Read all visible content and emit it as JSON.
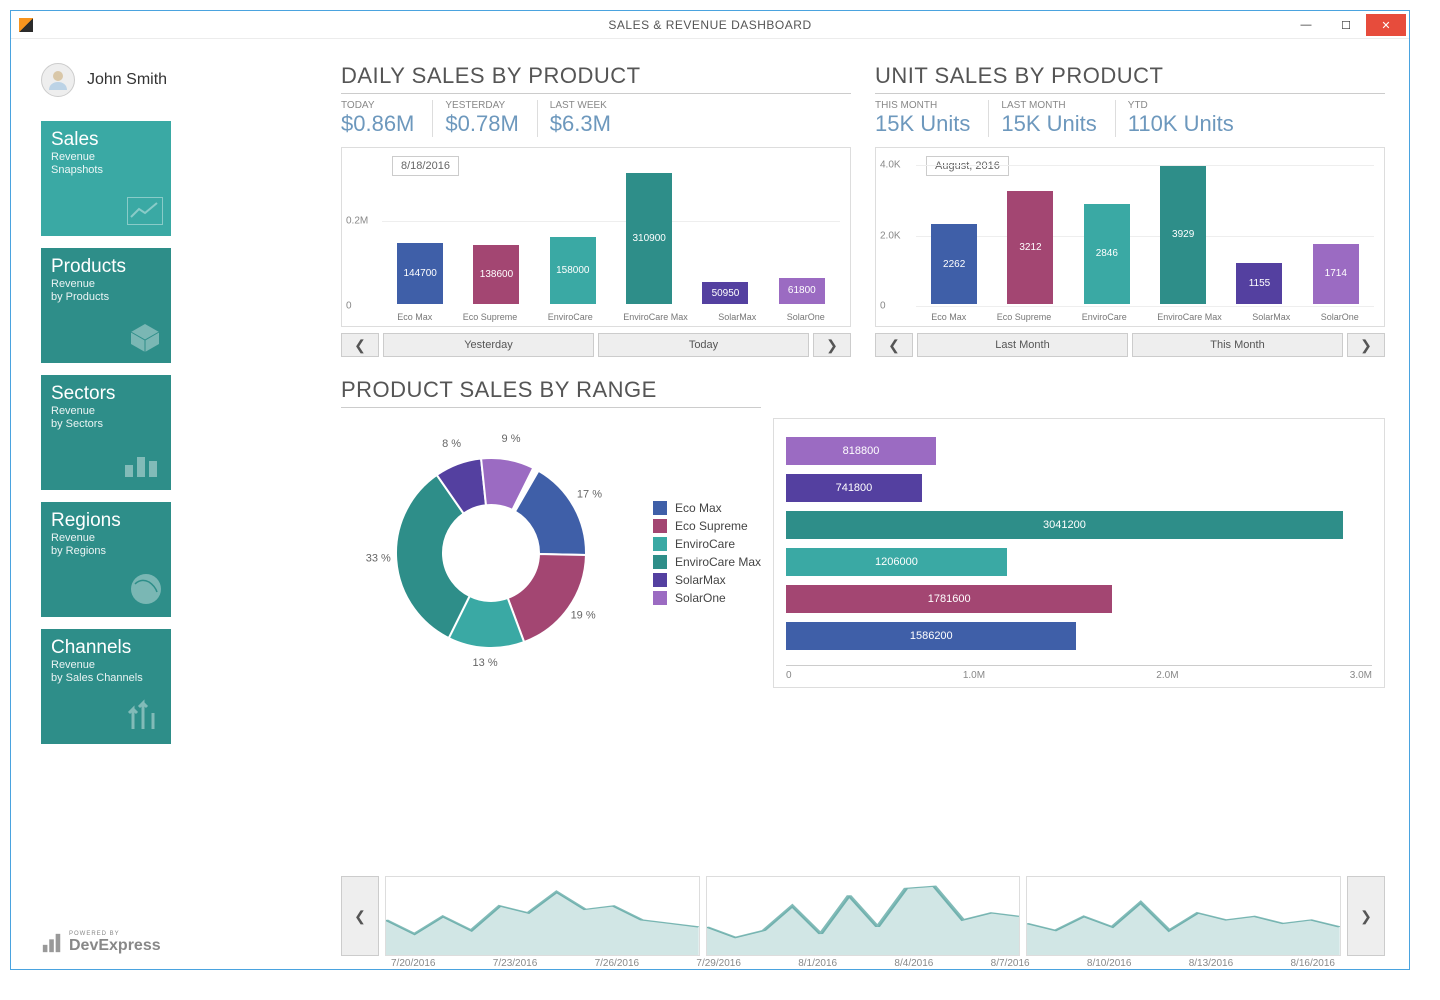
{
  "window": {
    "title": "SALES & REVENUE DASHBOARD"
  },
  "user": {
    "name": "John Smith"
  },
  "tiles": [
    {
      "title": "Sales",
      "sub1": "Revenue",
      "sub2": "Snapshots",
      "dark": false
    },
    {
      "title": "Products",
      "sub1": "Revenue",
      "sub2": "by Products",
      "dark": true
    },
    {
      "title": "Sectors",
      "sub1": "Revenue",
      "sub2": "by Sectors",
      "dark": true
    },
    {
      "title": "Regions",
      "sub1": "Revenue",
      "sub2": "by Regions",
      "dark": true
    },
    {
      "title": "Channels",
      "sub1": "Revenue",
      "sub2": "by Sales Channels",
      "dark": true
    }
  ],
  "colors": {
    "ecoMax": "#3f5fa8",
    "ecoSupreme": "#a34672",
    "enviroCare": "#3aa9a4",
    "enviroCareMax": "#2e8e89",
    "solarMax": "#5440a0",
    "solarOne": "#9b6bc2",
    "tile": "#3aa9a4",
    "tileDark": "#2e8e89"
  },
  "daily": {
    "title": "DAILY SALES BY PRODUCT",
    "metrics": [
      {
        "label": "TODAY",
        "value": "$0.86M"
      },
      {
        "label": "YESTERDAY",
        "value": "$0.78M"
      },
      {
        "label": "LAST WEEK",
        "value": "$6.3M"
      }
    ],
    "tag": "8/18/2016",
    "ymax": 350000,
    "ytick_label": "0.2M",
    "ytick_at": 200000,
    "categories": [
      "Eco Max",
      "Eco Supreme",
      "EnviroCare",
      "EnviroCare Max",
      "SolarMax",
      "SolarOne"
    ],
    "values": [
      144700,
      138600,
      158000,
      310900,
      50950,
      61800
    ],
    "bar_colors": [
      "#3f5fa8",
      "#a34672",
      "#3aa9a4",
      "#2e8e89",
      "#5440a0",
      "#9b6bc2"
    ],
    "nav": {
      "prev": "Yesterday",
      "next": "Today"
    }
  },
  "unit": {
    "title": "UNIT SALES BY PRODUCT",
    "metrics": [
      {
        "label": "THIS MONTH",
        "value": "15K Units"
      },
      {
        "label": "LAST MONTH",
        "value": "15K Units"
      },
      {
        "label": "YTD",
        "value": "110K Units"
      }
    ],
    "tag": "August, 2016",
    "ymax": 4200,
    "ytick_labels": [
      "4.0K",
      "2.0K",
      "0"
    ],
    "ytick_at": [
      4000,
      2000,
      0
    ],
    "categories": [
      "Eco Max",
      "Eco Supreme",
      "EnviroCare",
      "EnviroCare Max",
      "SolarMax",
      "SolarOne"
    ],
    "values": [
      2262,
      3212,
      2846,
      3929,
      1155,
      1714
    ],
    "bar_colors": [
      "#3f5fa8",
      "#a34672",
      "#3aa9a4",
      "#2e8e89",
      "#5440a0",
      "#9b6bc2"
    ],
    "nav": {
      "prev": "Last Month",
      "next": "This Month"
    }
  },
  "range": {
    "title": "PRODUCT SALES BY RANGE",
    "donut": {
      "labelsPct": [
        "17 %",
        "19 %",
        "13 %",
        "33 %",
        "8 %",
        "9 %"
      ],
      "slices": [
        {
          "name": "Eco Max",
          "pct": 17,
          "color": "#3f5fa8"
        },
        {
          "name": "Eco Supreme",
          "pct": 19,
          "color": "#a34672"
        },
        {
          "name": "EnviroCare",
          "pct": 13,
          "color": "#3aa9a4"
        },
        {
          "name": "EnviroCare Max",
          "pct": 33,
          "color": "#2e8e89"
        },
        {
          "name": "SolarMax",
          "pct": 8,
          "color": "#5440a0"
        },
        {
          "name": "SolarOne",
          "pct": 9,
          "color": "#9b6bc2"
        }
      ]
    },
    "legend": [
      "Eco Max",
      "Eco Supreme",
      "EnviroCare",
      "EnviroCare Max",
      "SolarMax",
      "SolarOne"
    ],
    "hbars": {
      "max": 3200000,
      "xticks": [
        "0",
        "1.0M",
        "2.0M",
        "3.0M"
      ],
      "rows": [
        {
          "value": 818800,
          "color": "#9b6bc2"
        },
        {
          "value": 741800,
          "color": "#5440a0"
        },
        {
          "value": 3041200,
          "color": "#2e8e89"
        },
        {
          "value": 1206000,
          "color": "#3aa9a4"
        },
        {
          "value": 1781600,
          "color": "#a34672"
        },
        {
          "value": 1586200,
          "color": "#3f5fa8"
        }
      ]
    }
  },
  "timeline": {
    "dates": [
      "7/20/2016",
      "7/23/2016",
      "7/26/2016",
      "7/29/2016",
      "8/1/2016",
      "8/4/2016",
      "8/7/2016",
      "8/10/2016",
      "8/13/2016",
      "8/16/2016"
    ],
    "spark_color": "#2e8e89",
    "series": [
      [
        0.5,
        0.3,
        0.55,
        0.35,
        0.7,
        0.6,
        0.9,
        0.65,
        0.7,
        0.5,
        0.45,
        0.4
      ],
      [
        0.4,
        0.25,
        0.35,
        0.7,
        0.3,
        0.85,
        0.4,
        0.95,
        0.98,
        0.5,
        0.6,
        0.55
      ],
      [
        0.45,
        0.35,
        0.55,
        0.4,
        0.75,
        0.35,
        0.6,
        0.5,
        0.55,
        0.45,
        0.5,
        0.4
      ]
    ]
  },
  "footer": {
    "brand": "DevExpress",
    "tag": "POWERED BY"
  }
}
